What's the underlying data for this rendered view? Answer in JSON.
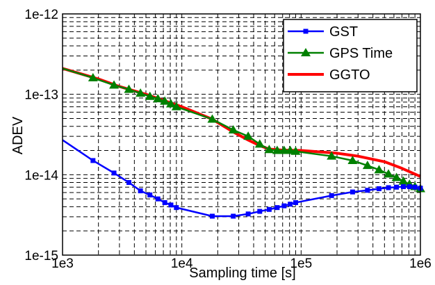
{
  "chart_data": {
    "type": "line",
    "title": "",
    "xlabel": "Sampling time [s]",
    "ylabel": "ADEV",
    "xscale": "log",
    "yscale": "log",
    "xlim": [
      1000,
      1000000
    ],
    "ylim": [
      1e-15,
      1e-12
    ],
    "x_ticks": [
      {
        "value": 1000,
        "label": "1e3"
      },
      {
        "value": 10000,
        "label": "1e4"
      },
      {
        "value": 100000,
        "label": "1e5"
      },
      {
        "value": 1000000,
        "label": "1e6"
      }
    ],
    "y_ticks": [
      {
        "value": 1e-15,
        "label": "1e-15"
      },
      {
        "value": 1e-14,
        "label": "1e-14"
      },
      {
        "value": 1e-13,
        "label": "1e-13"
      },
      {
        "value": 1e-12,
        "label": "1e-12"
      }
    ],
    "grid": true,
    "legend_position": "top-right",
    "series": [
      {
        "name": "GST",
        "color": "#0000ff",
        "marker": "square",
        "x": [
          1000,
          1800,
          2700,
          3600,
          4500,
          5400,
          6300,
          7200,
          8100,
          9000,
          18000,
          27000,
          36000,
          45000,
          54000,
          63000,
          72000,
          81000,
          90000,
          180000,
          270000,
          360000,
          450000,
          540000,
          630000,
          720000,
          810000,
          900000,
          1000000
        ],
        "y": [
          2.7e-14,
          1.5e-14,
          1.05e-14,
          8e-15,
          6.3e-15,
          5.6e-15,
          5e-15,
          4.5e-15,
          4.2e-15,
          3.9e-15,
          3.05e-15,
          3.05e-15,
          3.25e-15,
          3.5e-15,
          3.7e-15,
          3.9e-15,
          4.1e-15,
          4.3e-15,
          4.5e-15,
          5.5e-15,
          6.1e-15,
          6.4e-15,
          6.7e-15,
          6.9e-15,
          7e-15,
          7.1e-15,
          7.1e-15,
          7e-15,
          6.8e-15
        ]
      },
      {
        "name": "GPS Time",
        "color": "#008000",
        "marker": "triangle",
        "x": [
          1000,
          1800,
          2700,
          3600,
          4500,
          5400,
          6300,
          7200,
          8100,
          9000,
          18000,
          27000,
          36000,
          45000,
          54000,
          63000,
          72000,
          81000,
          90000,
          180000,
          270000,
          360000,
          450000,
          540000,
          630000,
          720000,
          810000,
          900000,
          1000000
        ],
        "y": [
          2.1e-13,
          1.6e-13,
          1.3e-13,
          1.15e-13,
          1.03e-13,
          9.4e-14,
          8.8e-14,
          8.2e-14,
          7.6e-14,
          7e-14,
          4.9e-14,
          3.6e-14,
          3e-14,
          2.4e-14,
          2.05e-14,
          2e-14,
          2e-14,
          2e-14,
          1.95e-14,
          1.7e-14,
          1.5e-14,
          1.3e-14,
          1.15e-14,
          1.02e-14,
          9.2e-15,
          8.3e-15,
          7.6e-15,
          7.1e-15,
          6.7e-15
        ]
      },
      {
        "name": "GGTO",
        "color": "#ff0000",
        "marker": "none",
        "x": [
          1000,
          2000,
          3000,
          5000,
          10000,
          18000,
          27000,
          36000,
          45000,
          54000,
          70000,
          100000,
          200000,
          300000,
          500000,
          700000,
          1000000
        ],
        "y": [
          2.1e-13,
          1.55e-13,
          1.25e-13,
          1e-13,
          7e-14,
          4.9e-14,
          3.4e-14,
          2.7e-14,
          2.3e-14,
          2.08e-14,
          2.02e-14,
          2e-14,
          1.85e-14,
          1.7e-14,
          1.45e-14,
          1.2e-14,
          9.5e-15
        ]
      }
    ]
  }
}
